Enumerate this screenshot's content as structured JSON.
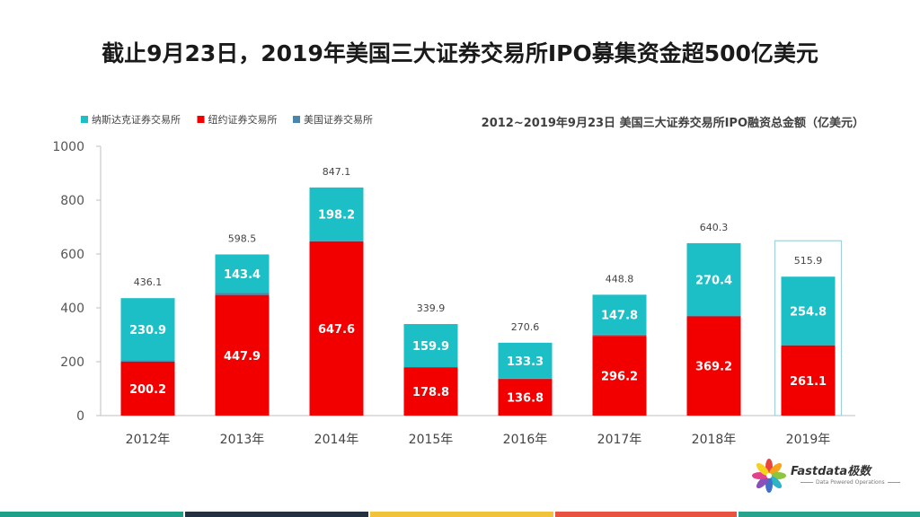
{
  "title": "截止9月23日，2019年美国三大证券交易所IPO募集资金超500亿美元",
  "brand": {
    "name": "Fastdata极数",
    "tagline": "Data Powered Operations"
  },
  "colors": {
    "nasdaq": "#1dbfc7",
    "nyse": "#f20000",
    "nyse_american": "#4a86a8",
    "highlight_border": "#9fd0dc",
    "stripes": [
      "#1f9e8a",
      "#233140",
      "#f2c23a",
      "#e8533f",
      "#27a28c"
    ]
  },
  "chart_data": {
    "type": "bar",
    "stacked": true,
    "title": "2012~2019年9月23日 美国三大证券交易所IPO融资总金额（亿美元）",
    "categories": [
      "2012年",
      "2013年",
      "2014年",
      "2015年",
      "2016年",
      "2017年",
      "2018年",
      "2019年"
    ],
    "series": [
      {
        "name": "纳斯达克证券交易所",
        "color": "#1dbfc7",
        "values": [
          230.9,
          143.4,
          198.2,
          159.9,
          133.3,
          147.8,
          270.4,
          254.8
        ]
      },
      {
        "name": "纽约证券交易所",
        "color": "#f20000",
        "values": [
          200.2,
          447.9,
          647.6,
          178.8,
          136.8,
          296.2,
          369.2,
          261.1
        ]
      },
      {
        "name": "美国证券交易所",
        "color": "#4a86a8",
        "values": [
          5,
          7.2,
          1.3,
          1.2,
          0.5,
          4.8,
          0.7,
          0
        ]
      }
    ],
    "stack_order_bottom_to_top": [
      "纽约证券交易所",
      "美国证券交易所",
      "纳斯达克证券交易所"
    ],
    "totals": [
      436.1,
      598.5,
      847.1,
      339.9,
      270.6,
      448.8,
      640.3,
      515.9
    ],
    "ylim": [
      0,
      1000
    ],
    "yticks": [
      0,
      200,
      400,
      600,
      800,
      1000
    ],
    "grid": false,
    "legend": "top-left",
    "highlight_category": "2019年"
  }
}
